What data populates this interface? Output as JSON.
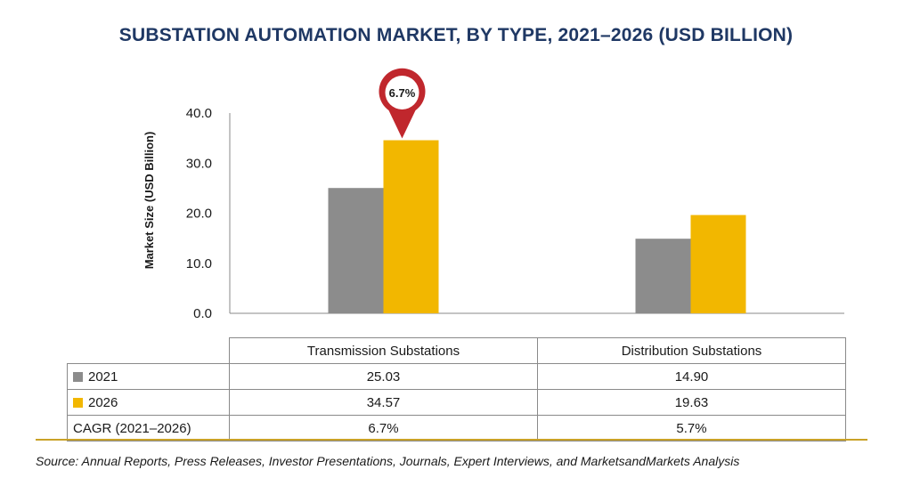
{
  "chart_data": {
    "type": "bar",
    "title": "SUBSTATION AUTOMATION MARKET, BY TYPE, 2021–2026 (USD BILLION)",
    "ylabel": "Market Size (USD Billion)",
    "xlabel": "",
    "ylim": [
      0,
      40
    ],
    "yticks": [
      "0.0",
      "10.0",
      "20.0",
      "30.0",
      "40.0"
    ],
    "categories": [
      "Transmission Substations",
      "Distribution Substations"
    ],
    "series": [
      {
        "name": "2021",
        "values": [
          25.03,
          14.9
        ],
        "labels": [
          "25.03",
          "14.90"
        ],
        "color": "#8c8c8c"
      },
      {
        "name": "2026",
        "values": [
          34.57,
          19.63
        ],
        "labels": [
          "34.57",
          "19.63"
        ],
        "color": "#f2b700"
      }
    ],
    "cagr": {
      "label": "CAGR (2021–2026)",
      "values": [
        "6.7%",
        "5.7%"
      ]
    },
    "callout": {
      "text": "6.7%",
      "color": "#c0272d"
    },
    "grid": false,
    "legend": "table-below"
  },
  "source": "Source: Annual Reports, Press Releases, Investor Presentations, Journals, Expert Interviews, and MarketsandMarkets Analysis",
  "colors": {
    "title": "#1f3864",
    "axis": "#8a8a8a",
    "rule": "#c9a227"
  }
}
